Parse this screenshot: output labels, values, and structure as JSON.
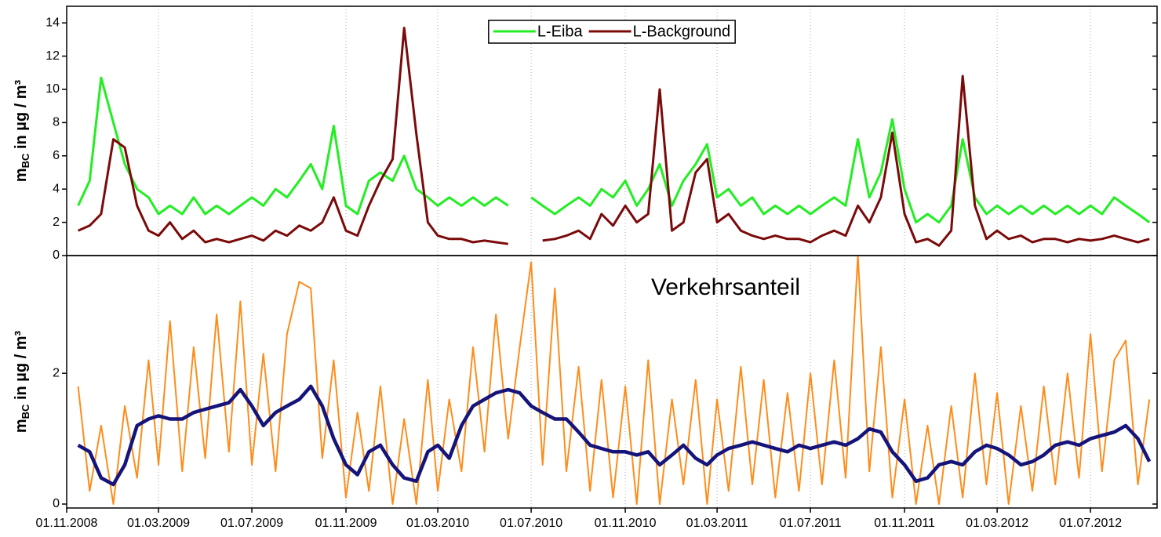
{
  "chart_data": [
    {
      "type": "line",
      "ylabel_main": "m",
      "ylabel_sub": "BC",
      "ylabel_rest": " in µg / m³",
      "legend": "upper center",
      "grid": true,
      "xlim": [
        "2008-11-01",
        "2012-09-26"
      ],
      "ylim": [
        0,
        15
      ],
      "yticks": [
        0,
        2,
        4,
        6,
        8,
        10,
        12,
        14
      ],
      "x": [
        "2008-11-16",
        "2008-12-01",
        "2008-12-16",
        "2009-01-01",
        "2009-01-16",
        "2009-02-01",
        "2009-02-16",
        "2009-03-01",
        "2009-03-16",
        "2009-04-01",
        "2009-04-16",
        "2009-05-01",
        "2009-05-16",
        "2009-06-01",
        "2009-06-16",
        "2009-07-01",
        "2009-07-16",
        "2009-08-01",
        "2009-08-16",
        "2009-09-01",
        "2009-09-16",
        "2009-10-01",
        "2009-10-16",
        "2009-11-01",
        "2009-11-16",
        "2009-12-01",
        "2009-12-16",
        "2010-01-01",
        "2010-01-16",
        "2010-02-01",
        "2010-02-16",
        "2010-03-01",
        "2010-03-16",
        "2010-04-01",
        "2010-04-16",
        "2010-05-01",
        "2010-05-16",
        "2010-06-01",
        "2010-06-16",
        "2010-07-01",
        "2010-07-16",
        "2010-08-01",
        "2010-08-16",
        "2010-09-01",
        "2010-09-16",
        "2010-10-01",
        "2010-10-16",
        "2010-11-01",
        "2010-11-16",
        "2010-12-01",
        "2010-12-16",
        "2011-01-01",
        "2011-01-16",
        "2011-02-01",
        "2011-02-16",
        "2011-03-01",
        "2011-03-16",
        "2011-04-01",
        "2011-04-16",
        "2011-05-01",
        "2011-05-16",
        "2011-06-01",
        "2011-06-16",
        "2011-07-01",
        "2011-07-16",
        "2011-08-01",
        "2011-08-16",
        "2011-09-01",
        "2011-09-16",
        "2011-10-01",
        "2011-10-16",
        "2011-11-01",
        "2011-11-16",
        "2011-12-01",
        "2011-12-16",
        "2012-01-01",
        "2012-01-16",
        "2012-02-01",
        "2012-02-16",
        "2012-03-01",
        "2012-03-16",
        "2012-04-01",
        "2012-04-16",
        "2012-05-01",
        "2012-05-16",
        "2012-06-01",
        "2012-06-16",
        "2012-07-01",
        "2012-07-16",
        "2012-08-01",
        "2012-08-16",
        "2012-09-01",
        "2012-09-16"
      ],
      "series": [
        {
          "name": "L-Eiba",
          "color": "#22ee22",
          "width": 3,
          "values": [
            3.0,
            4.5,
            10.7,
            8.0,
            5.5,
            4.0,
            3.5,
            2.5,
            3.0,
            2.5,
            3.5,
            2.5,
            3.0,
            2.5,
            3.0,
            3.5,
            3.0,
            4.0,
            3.5,
            4.5,
            5.5,
            4.0,
            7.8,
            3.0,
            2.5,
            4.5,
            5.0,
            4.5,
            6.0,
            4.0,
            3.5,
            3.0,
            3.5,
            3.0,
            3.5,
            3.0,
            3.5,
            3.0,
            null,
            3.5,
            3.0,
            2.5,
            3.0,
            3.5,
            3.0,
            4.0,
            3.5,
            4.5,
            3.0,
            4.0,
            5.5,
            3.0,
            4.5,
            5.5,
            6.7,
            3.5,
            4.0,
            3.0,
            3.5,
            2.5,
            3.0,
            2.5,
            3.0,
            2.5,
            3.0,
            3.5,
            3.0,
            7.0,
            3.5,
            5.0,
            8.2,
            4.0,
            2.0,
            2.5,
            2.0,
            3.0,
            7.0,
            3.5,
            2.5,
            3.0,
            2.5,
            3.0,
            2.5,
            3.0,
            2.5,
            3.0,
            2.5,
            3.0,
            2.5,
            3.5,
            3.0,
            2.5,
            2.0
          ]
        },
        {
          "name": "L-Background",
          "color": "#7b0a0a",
          "width": 3,
          "values": [
            1.5,
            1.8,
            2.5,
            7.0,
            6.5,
            3.0,
            1.5,
            1.2,
            2.0,
            1.0,
            1.5,
            0.8,
            1.0,
            0.8,
            1.0,
            1.2,
            0.9,
            1.5,
            1.2,
            1.8,
            1.5,
            2.0,
            3.5,
            1.5,
            1.2,
            3.0,
            4.5,
            5.8,
            13.7,
            7.3,
            2.0,
            1.2,
            1.0,
            1.0,
            0.8,
            0.9,
            0.8,
            0.7,
            null,
            null,
            0.9,
            1.0,
            1.2,
            1.5,
            1.0,
            2.5,
            1.8,
            3.0,
            2.0,
            2.5,
            10.0,
            1.5,
            2.0,
            5.0,
            5.8,
            2.0,
            2.5,
            1.5,
            1.2,
            1.0,
            1.2,
            1.0,
            1.0,
            0.8,
            1.2,
            1.5,
            1.2,
            3.0,
            2.0,
            3.5,
            7.4,
            2.5,
            0.8,
            1.0,
            0.6,
            1.5,
            10.8,
            3.0,
            1.0,
            1.5,
            1.0,
            1.2,
            0.8,
            1.0,
            1.0,
            0.8,
            1.0,
            0.9,
            1.0,
            1.2,
            1.0,
            0.8,
            1.0
          ]
        }
      ]
    },
    {
      "type": "line",
      "ylabel_main": "m",
      "ylabel_sub": "BC",
      "ylabel_rest": " in µg / m³",
      "annotation": "Verkehrsanteil",
      "grid": true,
      "xlim": [
        "2008-11-01",
        "2012-09-26"
      ],
      "xticks": [
        {
          "value": "2008-11-01",
          "label": "01.11.2008"
        },
        {
          "value": "2009-03-01",
          "label": "01.03.2009"
        },
        {
          "value": "2009-07-01",
          "label": "01.07.2009"
        },
        {
          "value": "2009-11-01",
          "label": "01.11.2009"
        },
        {
          "value": "2010-03-01",
          "label": "01.03.2010"
        },
        {
          "value": "2010-07-01",
          "label": "01.07.2010"
        },
        {
          "value": "2010-11-01",
          "label": "01.11.2010"
        },
        {
          "value": "2011-03-01",
          "label": "01.03.2011"
        },
        {
          "value": "2011-07-01",
          "label": "01.07.2011"
        },
        {
          "value": "2011-11-01",
          "label": "01.11.2011"
        },
        {
          "value": "2012-03-01",
          "label": "01.03.2012"
        },
        {
          "value": "2012-07-01",
          "label": "01.07.2012"
        }
      ],
      "ylim": [
        -0.06,
        3.8
      ],
      "yticks": [
        0,
        2
      ],
      "x": [
        "2008-11-16",
        "2008-12-01",
        "2008-12-16",
        "2009-01-01",
        "2009-01-16",
        "2009-02-01",
        "2009-02-16",
        "2009-03-01",
        "2009-03-16",
        "2009-04-01",
        "2009-04-16",
        "2009-05-01",
        "2009-05-16",
        "2009-06-01",
        "2009-06-16",
        "2009-07-01",
        "2009-07-16",
        "2009-08-01",
        "2009-08-16",
        "2009-09-01",
        "2009-09-16",
        "2009-10-01",
        "2009-10-16",
        "2009-11-01",
        "2009-11-16",
        "2009-12-01",
        "2009-12-16",
        "2010-01-01",
        "2010-01-16",
        "2010-02-01",
        "2010-02-16",
        "2010-03-01",
        "2010-03-16",
        "2010-04-01",
        "2010-04-16",
        "2010-05-01",
        "2010-05-16",
        "2010-06-01",
        "2010-06-16",
        "2010-07-01",
        "2010-07-16",
        "2010-08-01",
        "2010-08-16",
        "2010-09-01",
        "2010-09-16",
        "2010-10-01",
        "2010-10-16",
        "2010-11-01",
        "2010-11-16",
        "2010-12-01",
        "2010-12-16",
        "2011-01-01",
        "2011-01-16",
        "2011-02-01",
        "2011-02-16",
        "2011-03-01",
        "2011-03-16",
        "2011-04-01",
        "2011-04-16",
        "2011-05-01",
        "2011-05-16",
        "2011-06-01",
        "2011-06-16",
        "2011-07-01",
        "2011-07-16",
        "2011-08-01",
        "2011-08-16",
        "2011-09-01",
        "2011-09-16",
        "2011-10-01",
        "2011-10-16",
        "2011-11-01",
        "2011-11-16",
        "2011-12-01",
        "2011-12-16",
        "2012-01-01",
        "2012-01-16",
        "2012-02-01",
        "2012-02-16",
        "2012-03-01",
        "2012-03-16",
        "2012-04-01",
        "2012-04-16",
        "2012-05-01",
        "2012-05-16",
        "2012-06-01",
        "2012-06-16",
        "2012-07-01",
        "2012-07-16",
        "2012-08-01",
        "2012-08-16",
        "2012-09-01",
        "2012-09-16"
      ],
      "series": [
        {
          "color": "#ff8c1a",
          "width": 2,
          "values": [
            1.8,
            0.2,
            1.2,
            0.0,
            1.5,
            0.4,
            2.2,
            0.6,
            2.8,
            0.5,
            2.4,
            0.7,
            2.9,
            0.8,
            3.1,
            0.6,
            2.3,
            0.5,
            2.6,
            3.4,
            3.3,
            0.7,
            2.2,
            0.1,
            1.4,
            0.2,
            1.8,
            0.0,
            1.3,
            0.0,
            1.9,
            0.2,
            1.6,
            0.5,
            2.4,
            0.8,
            2.9,
            1.0,
            2.4,
            3.7,
            0.6,
            3.3,
            0.5,
            2.1,
            0.2,
            1.9,
            0.1,
            1.8,
            0.0,
            2.2,
            0.0,
            1.6,
            0.3,
            1.9,
            0.0,
            1.6,
            0.2,
            2.1,
            0.3,
            1.9,
            0.1,
            1.7,
            0.2,
            2.0,
            0.3,
            2.2,
            0.4,
            3.8,
            0.5,
            2.4,
            0.1,
            1.6,
            0.0,
            1.2,
            0.0,
            1.5,
            0.1,
            2.0,
            0.3,
            1.7,
            0.0,
            1.5,
            0.2,
            1.8,
            0.3,
            2.0,
            0.4,
            2.6,
            0.5,
            2.2,
            2.5,
            0.3,
            1.6
          ]
        },
        {
          "color": "#14147a",
          "width": 4.5,
          "values": [
            0.9,
            0.8,
            0.4,
            0.3,
            0.6,
            1.2,
            1.3,
            1.35,
            1.3,
            1.3,
            1.4,
            1.45,
            1.5,
            1.55,
            1.75,
            1.5,
            1.2,
            1.4,
            1.5,
            1.6,
            1.8,
            1.5,
            1.0,
            0.6,
            0.45,
            0.8,
            0.9,
            0.6,
            0.4,
            0.35,
            0.8,
            0.9,
            0.7,
            1.2,
            1.5,
            1.6,
            1.7,
            1.75,
            1.7,
            1.5,
            1.4,
            1.3,
            1.3,
            1.1,
            0.9,
            0.85,
            0.8,
            0.8,
            0.75,
            0.8,
            0.6,
            0.75,
            0.9,
            0.7,
            0.6,
            0.75,
            0.85,
            0.9,
            0.95,
            0.9,
            0.85,
            0.8,
            0.9,
            0.85,
            0.9,
            0.95,
            0.9,
            1.0,
            1.15,
            1.1,
            0.8,
            0.6,
            0.35,
            0.4,
            0.6,
            0.65,
            0.6,
            0.8,
            0.9,
            0.85,
            0.75,
            0.6,
            0.65,
            0.75,
            0.9,
            0.95,
            0.9,
            1.0,
            1.05,
            1.1,
            1.2,
            1.0,
            0.65
          ]
        }
      ]
    }
  ]
}
